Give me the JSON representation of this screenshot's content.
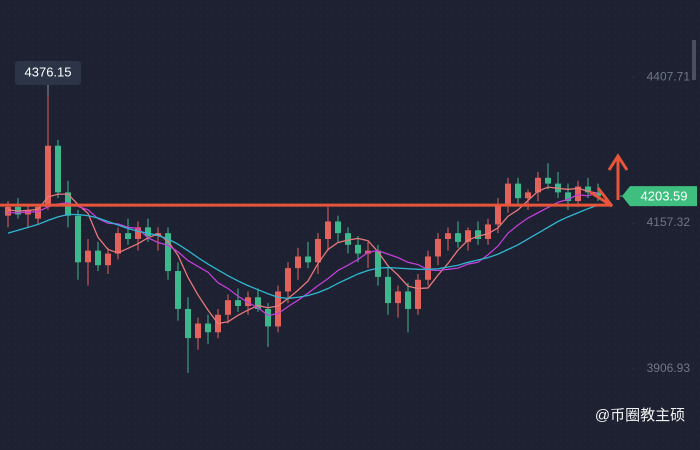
{
  "chart_data": {
    "type": "candlestick",
    "up_color": "#e4625c",
    "down_color": "#3db88c",
    "ylim": [
      3768,
      4540
    ],
    "yticks": [
      4407.71,
      4157.32,
      3906.93
    ],
    "open": [
      4170,
      4185,
      4172,
      4165,
      4185,
      4290,
      4210,
      4170,
      4090,
      4110,
      4085,
      4105,
      4140,
      4130,
      4150,
      4135,
      4140,
      4075,
      4010,
      3960,
      3985,
      3970,
      4000,
      4025,
      4015,
      4030,
      4010,
      3980,
      4040,
      4080,
      4100,
      4090,
      4130,
      4160,
      4140,
      4120,
      4105,
      4110,
      4065,
      4020,
      4040,
      4010,
      4060,
      4100,
      4130,
      4140,
      4125,
      4145,
      4130,
      4155,
      4190,
      4225,
      4200,
      4210,
      4235,
      4225,
      4210,
      4195,
      4220,
      4210
    ],
    "high": [
      4195,
      4200,
      4190,
      4190,
      4376.15,
      4300,
      4230,
      4180,
      4130,
      4125,
      4115,
      4150,
      4165,
      4160,
      4165,
      4150,
      4150,
      4090,
      4030,
      3995,
      4000,
      4010,
      4035,
      4045,
      4040,
      4045,
      4020,
      4050,
      4090,
      4115,
      4125,
      4140,
      4185,
      4170,
      4150,
      4135,
      4125,
      4120,
      4080,
      4050,
      4055,
      4070,
      4110,
      4140,
      4150,
      4160,
      4150,
      4160,
      4165,
      4200,
      4235,
      4235,
      4215,
      4245,
      4260,
      4245,
      4225,
      4230,
      4235,
      4225
    ],
    "low": [
      4150,
      4165,
      4150,
      4155,
      4180,
      4200,
      4150,
      4060,
      4050,
      4075,
      4070,
      4095,
      4120,
      4110,
      4125,
      4110,
      4060,
      3990,
      3900,
      3940,
      3950,
      3960,
      3985,
      4005,
      4000,
      4005,
      3945,
      3970,
      4020,
      4060,
      4080,
      4070,
      4110,
      4125,
      4105,
      4090,
      4080,
      4050,
      4000,
      3995,
      3970,
      4000,
      4050,
      4085,
      4110,
      4115,
      4110,
      4120,
      4120,
      4140,
      4175,
      4190,
      4180,
      4195,
      4215,
      4200,
      4180,
      4185,
      4200,
      4195
    ],
    "close": [
      4185,
      4172,
      4180,
      4185,
      4290,
      4210,
      4170,
      4090,
      4110,
      4085,
      4105,
      4140,
      4130,
      4150,
      4135,
      4140,
      4075,
      4010,
      3960,
      3985,
      3970,
      4000,
      4025,
      4015,
      4030,
      4010,
      3980,
      4040,
      4080,
      4100,
      4090,
      4130,
      4160,
      4140,
      4120,
      4105,
      4110,
      4065,
      4020,
      4040,
      4010,
      4060,
      4100,
      4130,
      4140,
      4125,
      4145,
      4130,
      4155,
      4190,
      4225,
      4200,
      4210,
      4235,
      4225,
      4210,
      4195,
      4220,
      4210,
      4203.59
    ],
    "ma_lines": [
      {
        "color": "#e8787a",
        "values": [
          4180,
          4178,
          4179,
          4181,
          4202,
          4207,
          4207,
          4189,
          4174,
          4133,
          4112,
          4106,
          4114,
          4122,
          4132,
          4139,
          4126,
          4102,
          4064,
          4034,
          4008,
          3985,
          3988,
          3999,
          4008,
          4016,
          4012,
          4015,
          4028,
          4042,
          4058,
          4088,
          4112,
          4124,
          4128,
          4131,
          4127,
          4108,
          4084,
          4068,
          4049,
          4045,
          4046,
          4068,
          4088,
          4111,
          4128,
          4135,
          4139,
          4149,
          4169,
          4180,
          4196,
          4212,
          4219,
          4217,
          4215,
          4217,
          4212,
          4208
        ]
      },
      {
        "color": "#c13fd6",
        "values": [
          4175,
          4175,
          4176,
          4177,
          4185,
          4190,
          4192,
          4186,
          4180,
          4165,
          4157,
          4156,
          4150,
          4148,
          4132,
          4124,
          4119,
          4108,
          4093,
          4083,
          4073,
          4055,
          4045,
          4032,
          4021,
          4012,
          3999,
          4002,
          4014,
          4025,
          4037,
          4050,
          4062,
          4076,
          4085,
          4095,
          4107,
          4110,
          4104,
          4098,
          4090,
          4086,
          4077,
          4076,
          4078,
          4080,
          4087,
          4090,
          4103,
          4118,
          4140,
          4154,
          4166,
          4175,
          4184,
          4193,
          4198,
          4206,
          4204,
          4210
        ]
      },
      {
        "color": "#2fb7d1",
        "values": [
          4140,
          4145,
          4150,
          4155,
          4162,
          4168,
          4172,
          4172,
          4170,
          4166,
          4160,
          4154,
          4148,
          4143,
          4140,
          4136,
          4130,
          4121,
          4110,
          4098,
          4087,
          4077,
          4067,
          4058,
          4050,
          4043,
          4036,
          4030,
          4028,
          4030,
          4033,
          4038,
          4045,
          4054,
          4062,
          4070,
          4076,
          4080,
          4081,
          4080,
          4079,
          4078,
          4078,
          4079,
          4082,
          4085,
          4090,
          4094,
          4098,
          4104,
          4112,
          4120,
          4130,
          4140,
          4150,
          4160,
          4168,
          4175,
          4182,
          4188
        ]
      }
    ],
    "max_label": 4376.15,
    "last_price": 4203.59,
    "last_price_color": "#3fbf7f",
    "support_line": 4188,
    "support_color": "#e8553a",
    "watermark": "@币圈教主硕"
  }
}
